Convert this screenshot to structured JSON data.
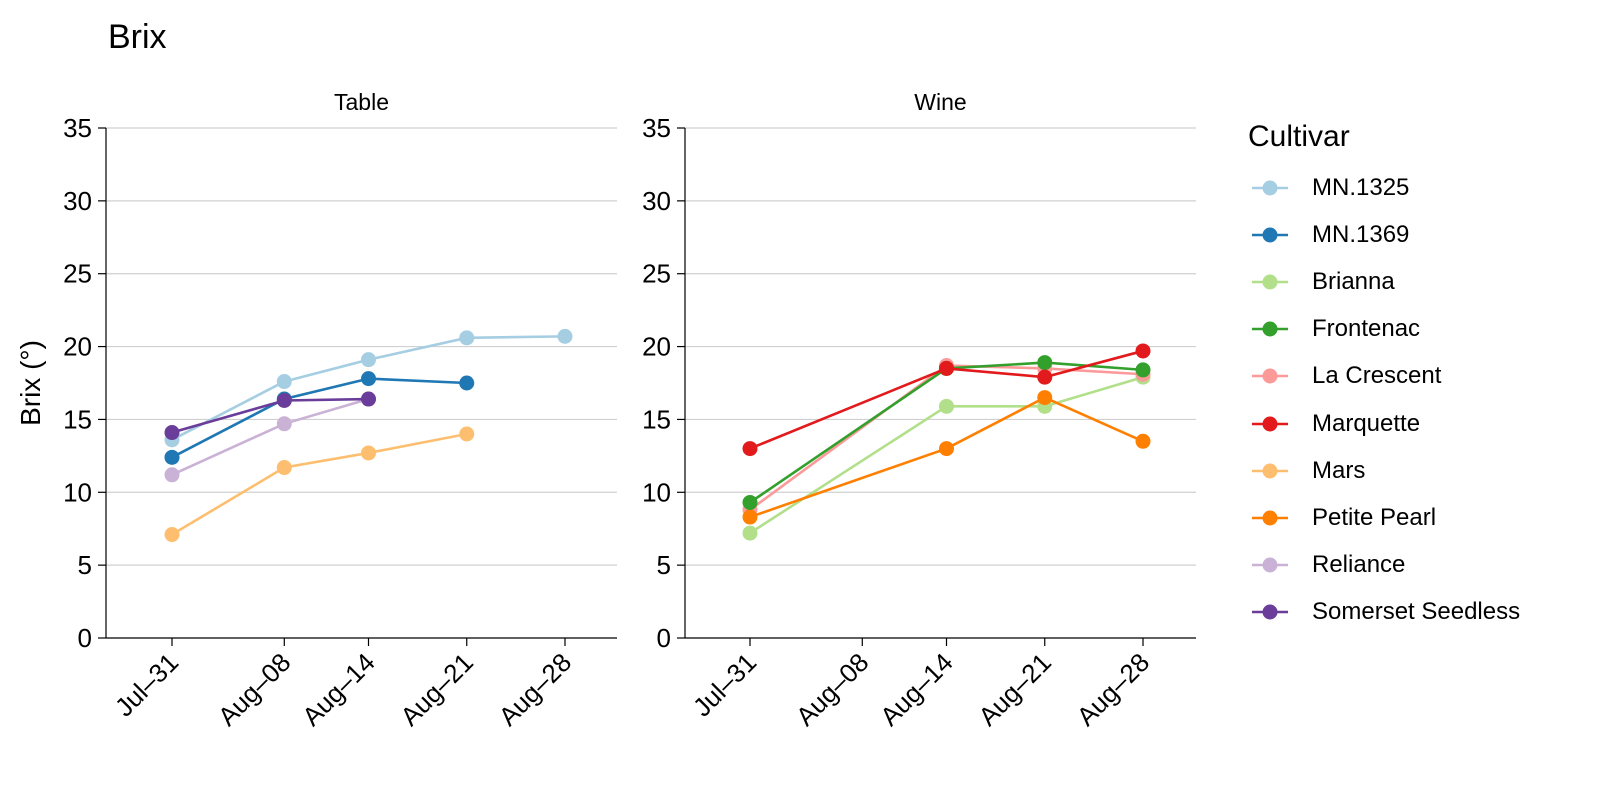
{
  "page_title": "Brix",
  "legend": {
    "title": "Cultivar",
    "position": "right",
    "items": [
      {
        "label": "MN.1325",
        "color": "#a6cee3"
      },
      {
        "label": "MN.1369",
        "color": "#1f78b4"
      },
      {
        "label": "Brianna",
        "color": "#b2df8a"
      },
      {
        "label": "Frontenac",
        "color": "#33a02c"
      },
      {
        "label": "La Crescent",
        "color": "#fb9a99"
      },
      {
        "label": "Marquette",
        "color": "#e31a1c"
      },
      {
        "label": "Mars",
        "color": "#fdbf6f"
      },
      {
        "label": "Petite Pearl",
        "color": "#ff7f00"
      },
      {
        "label": "Reliance",
        "color": "#cab2d6"
      },
      {
        "label": "Somerset Seedless",
        "color": "#6a3d9a"
      }
    ]
  },
  "chart_data": [
    {
      "type": "line",
      "title": "Table",
      "xlabel": "",
      "ylabel": "Brix (°)",
      "categories": [
        "Jul–31",
        "Aug–08",
        "Aug–14",
        "Aug–21",
        "Aug–28"
      ],
      "ylim": [
        0,
        35
      ],
      "yticks": [
        0,
        5,
        10,
        15,
        20,
        25,
        30,
        35
      ],
      "grid": "horizontal",
      "series": [
        {
          "name": "MN.1325",
          "color": "#a6cee3",
          "values": [
            13.6,
            17.6,
            19.1,
            20.6,
            20.7
          ]
        },
        {
          "name": "MN.1369",
          "color": "#1f78b4",
          "values": [
            12.4,
            16.4,
            17.8,
            17.5,
            null
          ]
        },
        {
          "name": "Mars",
          "color": "#fdbf6f",
          "values": [
            7.1,
            11.7,
            12.7,
            14.0,
            null
          ]
        },
        {
          "name": "Reliance",
          "color": "#cab2d6",
          "values": [
            11.2,
            14.7,
            16.4,
            null,
            null
          ]
        },
        {
          "name": "Somerset Seedless",
          "color": "#6a3d9a",
          "values": [
            14.1,
            16.3,
            16.4,
            null,
            null
          ]
        }
      ]
    },
    {
      "type": "line",
      "title": "Wine",
      "xlabel": "",
      "ylabel": "",
      "categories": [
        "Jul–31",
        "Aug–08",
        "Aug–14",
        "Aug–21",
        "Aug–28"
      ],
      "ylim": [
        0,
        35
      ],
      "yticks": [
        0,
        5,
        10,
        15,
        20,
        25,
        30,
        35
      ],
      "grid": "horizontal",
      "series": [
        {
          "name": "Brianna",
          "color": "#b2df8a",
          "values": [
            7.2,
            null,
            15.9,
            15.9,
            17.9
          ]
        },
        {
          "name": "La Crescent",
          "color": "#fb9a99",
          "values": [
            8.8,
            null,
            18.7,
            18.5,
            18.1
          ]
        },
        {
          "name": "Petite Pearl",
          "color": "#ff7f00",
          "values": [
            8.3,
            null,
            13.0,
            16.5,
            13.5
          ]
        },
        {
          "name": "Frontenac",
          "color": "#33a02c",
          "values": [
            9.3,
            null,
            18.5,
            18.9,
            18.4
          ]
        },
        {
          "name": "Marquette",
          "color": "#e31a1c",
          "values": [
            13.0,
            null,
            18.5,
            17.9,
            19.7
          ]
        }
      ]
    }
  ]
}
